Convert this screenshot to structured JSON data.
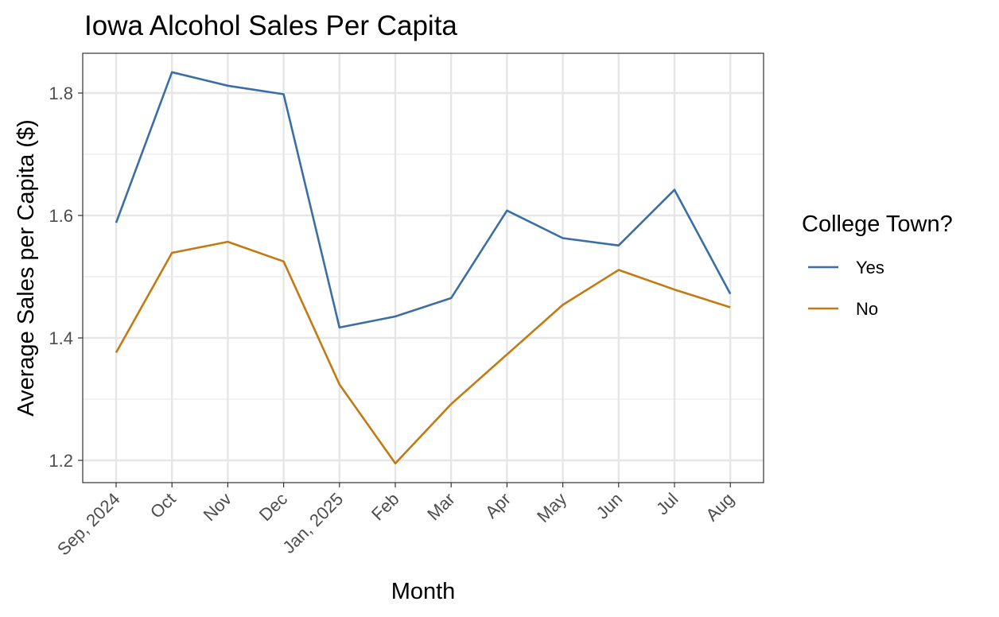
{
  "chart_data": {
    "type": "line",
    "title": "Iowa Alcohol Sales Per Capita",
    "xlabel": "Month",
    "ylabel": "Average Sales per Capita ($)",
    "categories": [
      "Sep, 2024",
      "Oct",
      "Nov",
      "Dec",
      "Jan, 2025",
      "Feb",
      "Mar",
      "Apr",
      "May",
      "Jun",
      "Jul",
      "Aug"
    ],
    "yticks": [
      "1.2",
      "1.4",
      "1.6",
      "1.8"
    ],
    "ylim": [
      1.16,
      1.865
    ],
    "grid": true,
    "legend": {
      "title": "College Town?",
      "position": "right"
    },
    "series": [
      {
        "name": "Yes",
        "color": "#3a6ea5",
        "values": [
          1.588,
          1.834,
          1.812,
          1.798,
          1.417,
          1.435,
          1.465,
          1.608,
          1.563,
          1.551,
          1.642,
          1.472
        ]
      },
      {
        "name": "No",
        "color": "#c47a13",
        "values": [
          1.376,
          1.539,
          1.557,
          1.525,
          1.324,
          1.195,
          1.292,
          1.373,
          1.454,
          1.511,
          1.479,
          1.45
        ]
      }
    ]
  }
}
